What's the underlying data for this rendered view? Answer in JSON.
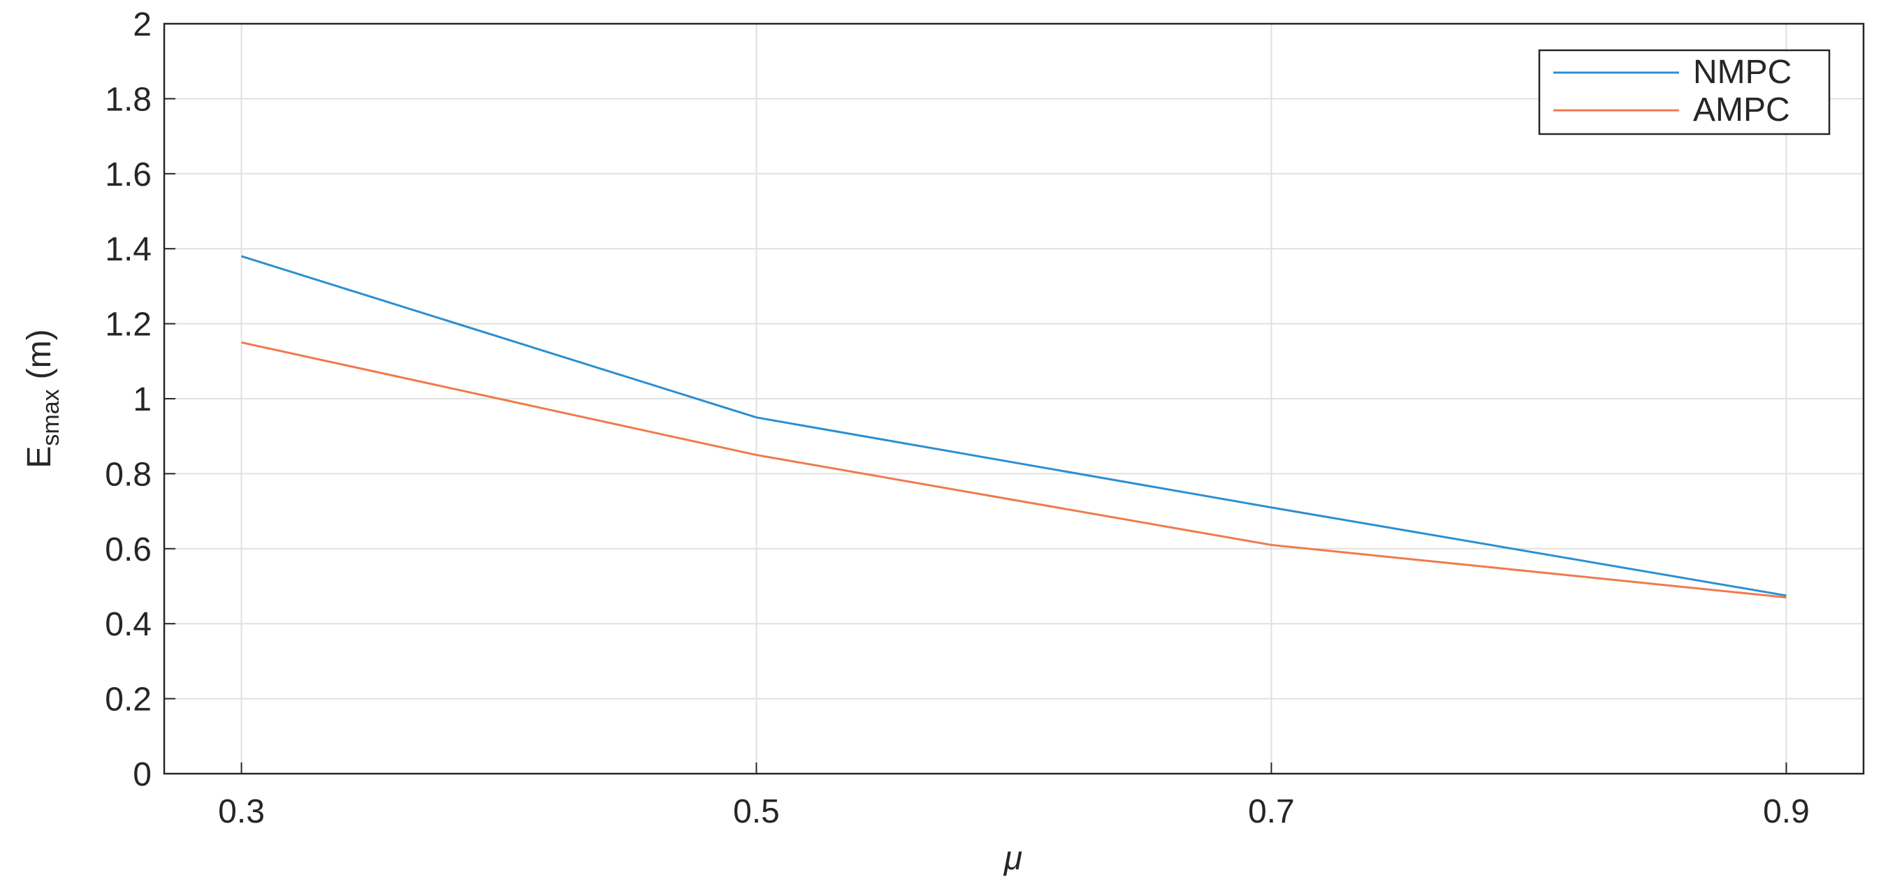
{
  "chart_data": {
    "type": "line",
    "x": [
      0.3,
      0.5,
      0.7,
      0.9
    ],
    "series": [
      {
        "name": "NMPC",
        "color": "#2b8fd1",
        "values": [
          1.38,
          0.95,
          0.71,
          0.475
        ]
      },
      {
        "name": "AMPC",
        "color": "#f07a4c",
        "values": [
          1.15,
          0.85,
          0.61,
          0.47
        ]
      }
    ],
    "xlim": [
      0.27,
      0.93
    ],
    "xticks": [
      0.3,
      0.5,
      0.7,
      0.9
    ],
    "ylim": [
      0,
      2
    ],
    "yticks": [
      0,
      0.2,
      0.4,
      0.6,
      0.8,
      1,
      1.2,
      1.4,
      1.6,
      1.8,
      2
    ],
    "x_label": "μ",
    "y_label": "E",
    "y_label_sub": "smax",
    "y_label_unit": "(m)",
    "grid": true,
    "legend": "top-right"
  }
}
